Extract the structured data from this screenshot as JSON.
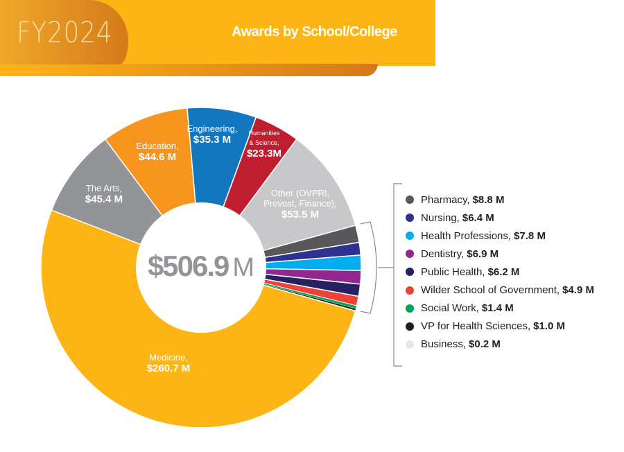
{
  "header": {
    "badge": "FY2024",
    "title": "Awards by School/College"
  },
  "chart_data": {
    "type": "pie",
    "variant": "donut",
    "title": "Awards by School/College",
    "center_label": {
      "value": "$506.9",
      "unit": "M"
    },
    "unit": "$M",
    "slices": [
      {
        "name": "Engineering",
        "label": "Engineering,",
        "value_label": "$35.3 M",
        "value": 35.3,
        "color": "#1277bf",
        "in_legend": false
      },
      {
        "name": "Humanities & Science",
        "label": "Humanities|& Science,",
        "value_label": "$23.3M",
        "value": 23.3,
        "color": "#be1e2d",
        "in_legend": false
      },
      {
        "name": "Other (OVPRI, Provost, Finance)",
        "label": "Other (OVPRI,|Provost, Finance),",
        "value_label": "$53.5 M",
        "value": 53.5,
        "color": "#c8c8ca",
        "in_legend": false
      },
      {
        "name": "Pharmacy",
        "label": "Pharmacy,",
        "value_label": "$8.8 M",
        "value": 8.8,
        "color": "#58585a",
        "in_legend": true
      },
      {
        "name": "Nursing",
        "label": "Nursing,",
        "value_label": "$6.4 M",
        "value": 6.4,
        "color": "#2e3192",
        "in_legend": true
      },
      {
        "name": "Health Professions",
        "label": "Health Professions,",
        "value_label": "$7.8 M",
        "value": 7.8,
        "color": "#00aeef",
        "in_legend": true
      },
      {
        "name": "Dentistry",
        "label": "Dentistry,",
        "value_label": "$6.9 M",
        "value": 6.9,
        "color": "#92278f",
        "in_legend": true
      },
      {
        "name": "Public Health",
        "label": "Public Health,",
        "value_label": "$6.2 M",
        "value": 6.2,
        "color": "#262262",
        "in_legend": true
      },
      {
        "name": "Wilder School of Government",
        "label": "Wilder School of Government,",
        "value_label": "$4.9 M",
        "value": 4.9,
        "color": "#ef4136",
        "in_legend": true
      },
      {
        "name": "Social Work",
        "label": "Social Work,",
        "value_label": "$1.4 M",
        "value": 1.4,
        "color": "#00a651",
        "in_legend": true
      },
      {
        "name": "VP for Health Sciences",
        "label": "VP for Health Sciences,",
        "value_label": "$1.0 M",
        "value": 1.0,
        "color": "#231f20",
        "in_legend": true
      },
      {
        "name": "Business",
        "label": "Business,",
        "value_label": "$0.2 M",
        "value": 0.2,
        "color": "#e6e7e8",
        "in_legend": true
      },
      {
        "name": "Medicine",
        "label": "Medicine,",
        "value_label": "$260.7 M",
        "value": 260.7,
        "color": "#fdb515",
        "in_legend": false
      },
      {
        "name": "The Arts",
        "label": "The Arts,",
        "value_label": "$45.4 M",
        "value": 45.4,
        "color": "#929497",
        "in_legend": false
      },
      {
        "name": "Education",
        "label": "Education,",
        "value_label": "$44.6 M",
        "value": 44.6,
        "color": "#f7941d",
        "in_legend": false
      }
    ]
  }
}
